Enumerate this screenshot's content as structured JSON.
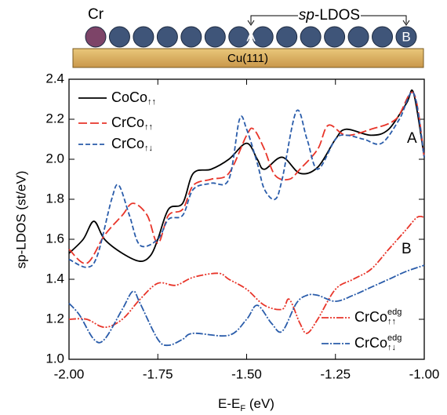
{
  "schematic": {
    "atom_label": "Cr",
    "bracket_label_italic": "sp",
    "bracket_label": "-LDOS",
    "site_a": "A",
    "site_b": "B",
    "substrate": "Cu(111)"
  },
  "chart_data": {
    "type": "line",
    "ylabel": "sp-LDOS (st/eV)",
    "xlabel": [
      "E-E",
      "F",
      " (eV)"
    ],
    "xlim": [
      -2.0,
      -1.0
    ],
    "ylim": [
      1.0,
      2.4
    ],
    "xticks": [
      {
        "value": -2.0,
        "label": "-2.00"
      },
      -1.75,
      {
        "value": -1.5,
        "label": "-1.50"
      },
      -1.25,
      {
        "value": -1.0,
        "label": "-1.00"
      }
    ],
    "yticks": [
      {
        "value": 1.0,
        "label": "1.0"
      },
      1.2,
      1.4,
      1.6,
      1.8,
      {
        "value": 2.0,
        "label": "2.0"
      },
      2.2,
      2.4
    ],
    "annotations": [
      "A",
      "B"
    ],
    "series": [
      {
        "name": "CoCo",
        "subscript": "↑↑",
        "color": "#000000",
        "dash": "none",
        "x": [
          -2.0,
          -1.96,
          -1.93,
          -1.9,
          -1.85,
          -1.8,
          -1.77,
          -1.75,
          -1.72,
          -1.68,
          -1.65,
          -1.6,
          -1.55,
          -1.5,
          -1.47,
          -1.45,
          -1.4,
          -1.35,
          -1.3,
          -1.25,
          -1.22,
          -1.15,
          -1.1,
          -1.05,
          -1.03,
          -1.0
        ],
        "values": [
          1.53,
          1.6,
          1.69,
          1.6,
          1.53,
          1.49,
          1.52,
          1.6,
          1.75,
          1.78,
          1.93,
          1.95,
          2.0,
          2.08,
          2.0,
          1.95,
          2.01,
          1.93,
          1.96,
          2.1,
          2.15,
          2.12,
          2.15,
          2.28,
          2.33,
          2.01
        ]
      },
      {
        "name": "CrCo",
        "subscript": "↑↑",
        "color": "#e8352a",
        "dash": "11,4",
        "x": [
          -2.0,
          -1.95,
          -1.9,
          -1.85,
          -1.82,
          -1.78,
          -1.75,
          -1.72,
          -1.68,
          -1.65,
          -1.6,
          -1.55,
          -1.5,
          -1.48,
          -1.45,
          -1.42,
          -1.38,
          -1.35,
          -1.3,
          -1.27,
          -1.22,
          -1.15,
          -1.08,
          -1.03,
          -1.0
        ],
        "values": [
          1.55,
          1.48,
          1.62,
          1.72,
          1.78,
          1.72,
          1.58,
          1.72,
          1.75,
          1.87,
          1.9,
          1.93,
          2.12,
          2.15,
          2.05,
          1.92,
          1.9,
          1.95,
          2.05,
          2.17,
          2.12,
          2.15,
          2.2,
          2.33,
          2.01
        ]
      },
      {
        "name": "CrCo",
        "subscript": "↑↓",
        "color": "#2a5caa",
        "dash": "6,3",
        "x": [
          -2.0,
          -1.95,
          -1.92,
          -1.88,
          -1.86,
          -1.83,
          -1.8,
          -1.75,
          -1.72,
          -1.68,
          -1.65,
          -1.6,
          -1.55,
          -1.52,
          -1.5,
          -1.47,
          -1.45,
          -1.42,
          -1.4,
          -1.36,
          -1.33,
          -1.3,
          -1.25,
          -1.22,
          -1.17,
          -1.12,
          -1.07,
          -1.03,
          -1.0
        ],
        "values": [
          1.5,
          1.46,
          1.52,
          1.8,
          1.87,
          1.72,
          1.57,
          1.6,
          1.7,
          1.72,
          1.85,
          1.88,
          1.9,
          2.2,
          2.15,
          1.98,
          1.85,
          1.8,
          1.9,
          2.24,
          2.1,
          1.95,
          2.1,
          2.12,
          2.1,
          2.08,
          2.2,
          2.33,
          2.01
        ]
      },
      {
        "name": "CrCo",
        "subscript": "↑↑",
        "superscript": "edg",
        "color": "#e8352a",
        "dash": "9,2,2,2,2,2",
        "x": [
          -2.0,
          -1.95,
          -1.9,
          -1.85,
          -1.8,
          -1.75,
          -1.7,
          -1.65,
          -1.58,
          -1.55,
          -1.5,
          -1.45,
          -1.4,
          -1.38,
          -1.35,
          -1.33,
          -1.3,
          -1.25,
          -1.2,
          -1.15,
          -1.1,
          -1.05,
          -1.02,
          -1.0
        ],
        "values": [
          1.2,
          1.2,
          1.16,
          1.2,
          1.3,
          1.38,
          1.37,
          1.41,
          1.43,
          1.4,
          1.35,
          1.27,
          1.25,
          1.3,
          1.18,
          1.13,
          1.2,
          1.35,
          1.4,
          1.45,
          1.55,
          1.65,
          1.71,
          1.71
        ]
      },
      {
        "name": "CrCo",
        "subscript": "↑↓",
        "superscript": "edg",
        "color": "#2a5caa",
        "dash": "9,2,2,2",
        "x": [
          -2.0,
          -1.97,
          -1.93,
          -1.9,
          -1.85,
          -1.82,
          -1.8,
          -1.75,
          -1.72,
          -1.68,
          -1.65,
          -1.55,
          -1.5,
          -1.47,
          -1.43,
          -1.4,
          -1.36,
          -1.33,
          -1.3,
          -1.25,
          -1.2,
          -1.15,
          -1.1,
          -1.05,
          -1.0
        ],
        "values": [
          1.28,
          1.22,
          1.1,
          1.1,
          1.25,
          1.34,
          1.28,
          1.1,
          1.07,
          1.1,
          1.13,
          1.12,
          1.2,
          1.27,
          1.18,
          1.14,
          1.28,
          1.32,
          1.32,
          1.29,
          1.32,
          1.36,
          1.4,
          1.44,
          1.47
        ]
      }
    ]
  }
}
